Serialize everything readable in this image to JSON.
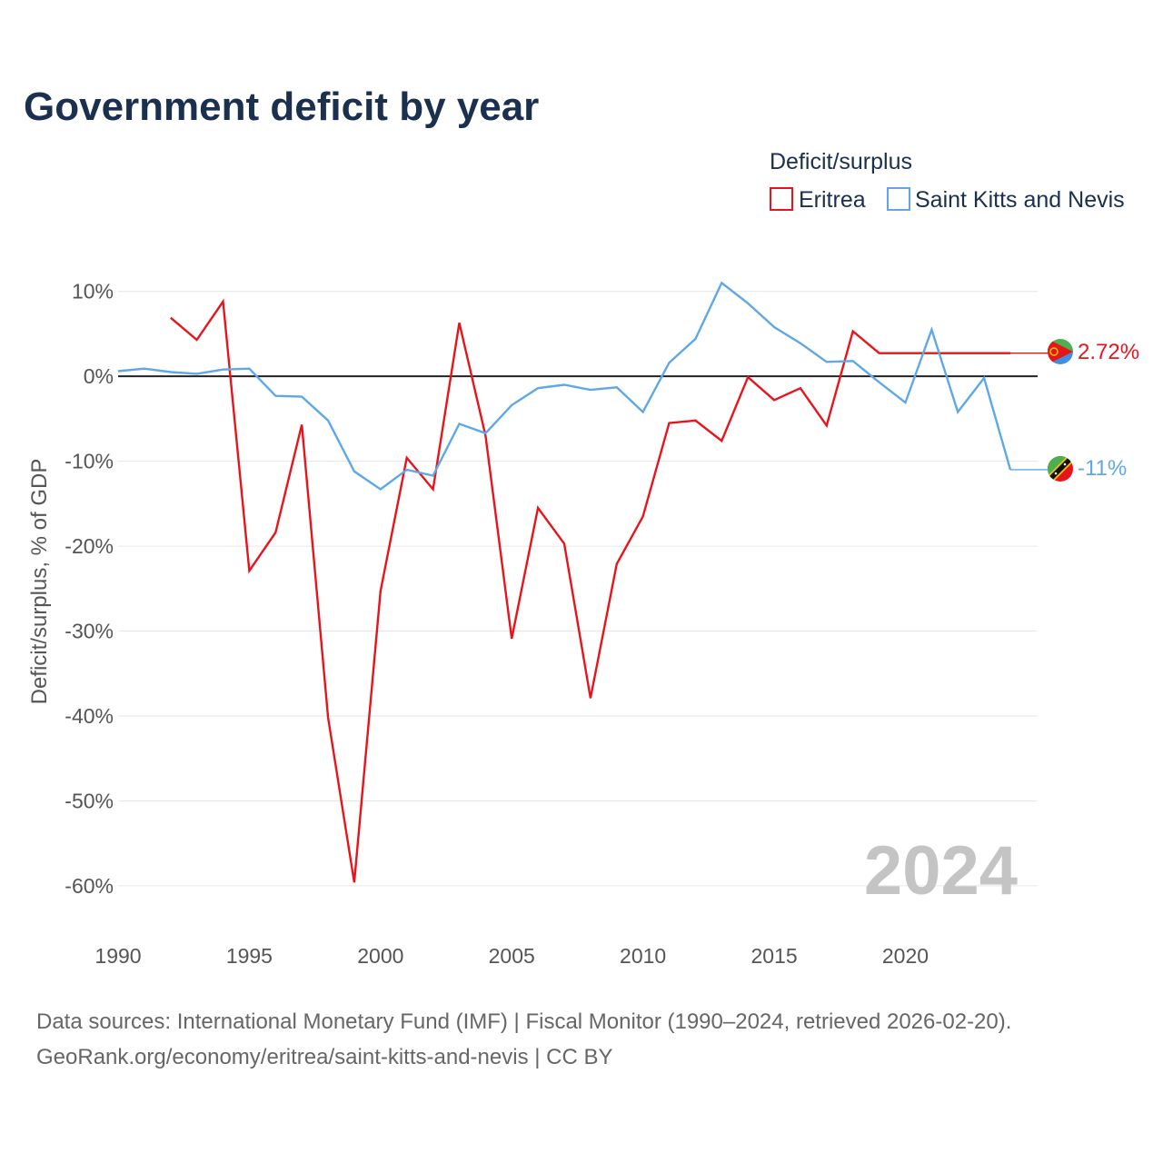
{
  "title": "Government deficit by year",
  "legend": {
    "title": "Deficit/surplus",
    "items": [
      {
        "name": "Eritrea",
        "color": "#e8141b"
      },
      {
        "name": "Saint Kitts and Nevis",
        "color": "#5fa8e8"
      }
    ]
  },
  "year_watermark": "2024",
  "source": {
    "line1": "Data sources: International Monetary Fund (IMF) | Fiscal Monitor (1990–2024, retrieved 2026-02-20).",
    "line2": "GeoRank.org/economy/eritrea/saint-kitts-and-nevis | CC BY"
  },
  "chart_data": {
    "type": "line",
    "title": "Government deficit by year",
    "xlabel": "",
    "ylabel": "Deficit/surplus, % of GDP",
    "xlim": [
      1990,
      2024
    ],
    "ylim": [
      -60,
      10
    ],
    "x_ticks": [
      1990,
      1995,
      2000,
      2005,
      2010,
      2015,
      2020
    ],
    "y_ticks": [
      10,
      0,
      -10,
      -20,
      -30,
      -40,
      -50,
      -60
    ],
    "y_tick_labels": [
      "10%",
      "0%",
      "-10%",
      "-20%",
      "-30%",
      "-40%",
      "-50%",
      "-60%"
    ],
    "grid": true,
    "zero_line": true,
    "legend_position": "top-right",
    "series": [
      {
        "name": "Eritrea",
        "color": "#e8141b",
        "end_label": "2.72%",
        "points": [
          [
            1992,
            6.9
          ],
          [
            1993,
            4.3
          ],
          [
            1994,
            8.8
          ],
          [
            1995,
            -22.9
          ],
          [
            1996,
            -18.4
          ],
          [
            1997,
            -5.7
          ],
          [
            1998,
            -40.2
          ],
          [
            1999,
            -59.6
          ],
          [
            2000,
            -25.3
          ],
          [
            2001,
            -9.6
          ],
          [
            2002,
            -13.3
          ],
          [
            2003,
            6.3
          ],
          [
            2004,
            -7.0
          ],
          [
            2005,
            -30.9
          ],
          [
            2006,
            -15.5
          ],
          [
            2007,
            -19.7
          ],
          [
            2008,
            -37.9
          ],
          [
            2009,
            -22.1
          ],
          [
            2010,
            -16.5
          ],
          [
            2011,
            -5.5
          ],
          [
            2012,
            -5.2
          ],
          [
            2013,
            -7.6
          ],
          [
            2014,
            -0.1
          ],
          [
            2015,
            -2.8
          ],
          [
            2016,
            -1.4
          ],
          [
            2017,
            -5.8
          ],
          [
            2018,
            5.3
          ],
          [
            2019,
            2.72
          ],
          [
            2024,
            2.72
          ]
        ]
      },
      {
        "name": "Saint Kitts and Nevis",
        "color": "#5fa8e8",
        "end_label": "-11%",
        "points": [
          [
            1990,
            0.6
          ],
          [
            1991,
            0.9
          ],
          [
            1992,
            0.5
          ],
          [
            1993,
            0.3
          ],
          [
            1994,
            0.8
          ],
          [
            1995,
            0.9
          ],
          [
            1996,
            -2.3
          ],
          [
            1997,
            -2.4
          ],
          [
            1998,
            -5.2
          ],
          [
            1999,
            -11.2
          ],
          [
            2000,
            -13.3
          ],
          [
            2001,
            -11.0
          ],
          [
            2002,
            -11.7
          ],
          [
            2003,
            -5.6
          ],
          [
            2004,
            -6.7
          ],
          [
            2005,
            -3.4
          ],
          [
            2006,
            -1.4
          ],
          [
            2007,
            -1.0
          ],
          [
            2008,
            -1.6
          ],
          [
            2009,
            -1.3
          ],
          [
            2010,
            -4.2
          ],
          [
            2011,
            1.6
          ],
          [
            2012,
            4.4
          ],
          [
            2013,
            11.0
          ],
          [
            2014,
            8.6
          ],
          [
            2015,
            5.8
          ],
          [
            2016,
            3.9
          ],
          [
            2017,
            1.7
          ],
          [
            2018,
            1.8
          ],
          [
            2019,
            -0.7
          ],
          [
            2020,
            -3.1
          ],
          [
            2021,
            5.5
          ],
          [
            2022,
            -4.2
          ],
          [
            2023,
            -0.2
          ],
          [
            2024,
            -11.0
          ]
        ]
      }
    ]
  }
}
